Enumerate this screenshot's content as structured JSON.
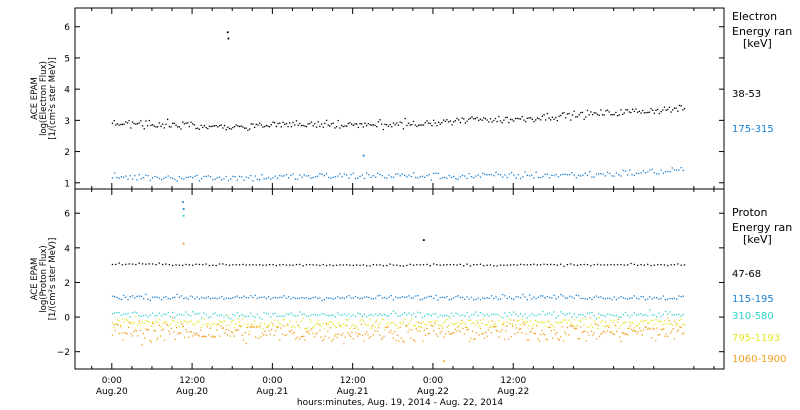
{
  "chart_data": [
    {
      "type": "scatter",
      "panel": "electron",
      "ylabel_lines": [
        "ACE EPAM",
        "log(Electron Flux)",
        "[1/(cm²s ster MeV)]"
      ],
      "yticks": [
        "1",
        "2",
        "3",
        "4",
        "5",
        "6"
      ],
      "ylim": [
        0.8,
        6.6
      ],
      "legend_title": [
        "Electron",
        "Energy ran",
        "[keV]"
      ],
      "series": [
        {
          "label": "38-53",
          "color": "#000000",
          "x": [
            0,
            6,
            12,
            18,
            24,
            30,
            36,
            42,
            48,
            54,
            60,
            66,
            72,
            78,
            85.5
          ],
          "y": [
            2.95,
            2.9,
            2.85,
            2.82,
            2.87,
            2.9,
            2.85,
            2.88,
            2.93,
            3.05,
            3.05,
            3.15,
            3.22,
            3.3,
            3.4
          ]
        },
        {
          "label": "175-315",
          "color": "#1a7fcf",
          "x": [
            0,
            10,
            20,
            30,
            40,
            50,
            60,
            70,
            80,
            85.5
          ],
          "y": [
            1.2,
            1.2,
            1.18,
            1.22,
            1.25,
            1.22,
            1.25,
            1.27,
            1.35,
            1.45
          ]
        }
      ],
      "outliers": [
        {
          "series": "38-53",
          "x": 17.2,
          "y": 5.85
        },
        {
          "series": "38-53",
          "x": 17.3,
          "y": 5.65
        },
        {
          "series": "175-315",
          "x": 37.5,
          "y": 1.9
        }
      ]
    },
    {
      "type": "scatter",
      "panel": "proton",
      "ylabel_lines": [
        "ACE EPAM",
        "log(Proton Flux)",
        "[1/(cm²s ster MeV)]"
      ],
      "yticks": [
        "−2",
        "0",
        "2",
        "4",
        "6"
      ],
      "ylim": [
        -3.0,
        7.4
      ],
      "legend_title": [
        "Proton",
        "Energy ran",
        "[keV]"
      ],
      "series": [
        {
          "label": "47-68",
          "color": "#000000",
          "x": [
            0,
            20,
            40,
            60,
            85.5
          ],
          "y": [
            3.1,
            3.05,
            3.05,
            3.05,
            3.05
          ]
        },
        {
          "label": "115-195",
          "color": "#1a7fcf",
          "x": [
            0,
            20,
            40,
            60,
            85.5
          ],
          "y": [
            1.2,
            1.15,
            1.15,
            1.2,
            1.15
          ]
        },
        {
          "label": "310-580",
          "color": "#33d3cc",
          "x": [
            0,
            20,
            40,
            60,
            85.5
          ],
          "y": [
            0.2,
            0.15,
            0.15,
            0.15,
            0.2
          ]
        },
        {
          "label": "795-1193",
          "color": "#e6e62a",
          "x": [
            0,
            20,
            40,
            60,
            85.5
          ],
          "y": [
            -0.3,
            -0.35,
            -0.35,
            -0.3,
            -0.3
          ]
        },
        {
          "label": "1060-1900",
          "color": "#f0a020",
          "x": [
            0,
            20,
            40,
            60,
            85.5
          ],
          "y": [
            -0.8,
            -0.85,
            -0.85,
            -0.8,
            -0.8
          ]
        }
      ],
      "outliers": [
        {
          "series": "115-195",
          "x": 10.5,
          "y": 6.7
        },
        {
          "series": "115-195",
          "x": 10.6,
          "y": 6.3
        },
        {
          "series": "310-580",
          "x": 10.6,
          "y": 5.9
        },
        {
          "series": "1060-1900",
          "x": 10.6,
          "y": 4.3
        },
        {
          "series": "47-68",
          "x": 46.5,
          "y": 4.5
        },
        {
          "series": "1060-1900",
          "x": 49.5,
          "y": -2.5
        }
      ]
    }
  ],
  "xaxis": {
    "xlim": [
      -5.5,
      91.5
    ],
    "ticks": [
      {
        "x": 0,
        "time": "0:00",
        "date": "Aug.20"
      },
      {
        "x": 12,
        "time": "12:00",
        "date": "Aug.20"
      },
      {
        "x": 24,
        "time": "0:00",
        "date": "Aug.21"
      },
      {
        "x": 36,
        "time": "12:00",
        "date": "Aug.21"
      },
      {
        "x": 48,
        "time": "0:00",
        "date": "Aug.22"
      },
      {
        "x": 60,
        "time": "12:00",
        "date": "Aug.22"
      }
    ],
    "label": "hours:minutes, Aug. 19, 2014 - Aug. 22, 2014"
  }
}
